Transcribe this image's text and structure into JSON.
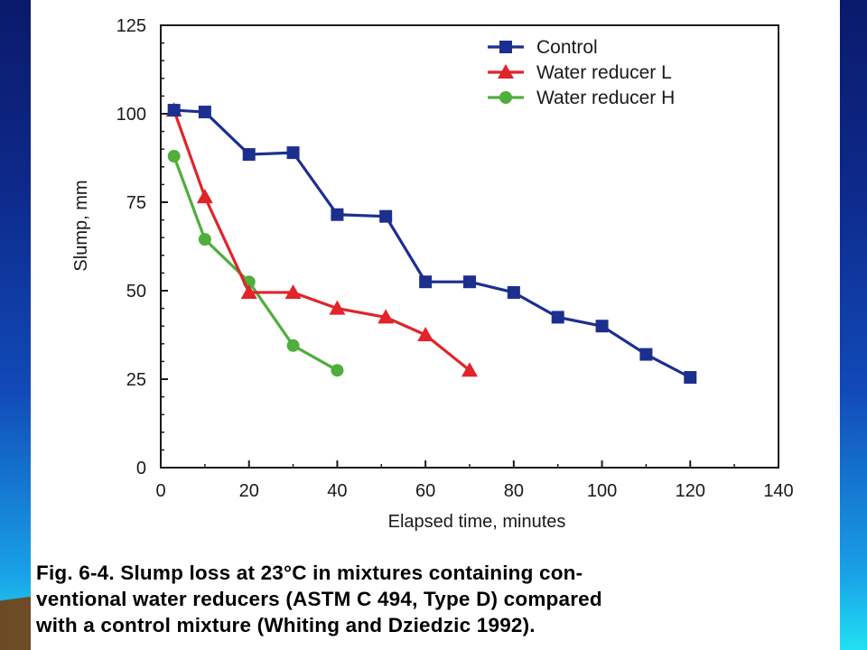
{
  "caption": {
    "lines": [
      "Fig. 6-4. Slump loss at 23°C in mixtures containing con-",
      "ventional water reducers (ASTM C 494, Type D) compared",
      "with a control mixture (Whiting and Dziedzic 1992)."
    ]
  },
  "chart_data": {
    "type": "line",
    "xlabel": "Elapsed time, minutes",
    "ylabel": "Slump, mm",
    "xlim": [
      0,
      140
    ],
    "ylim": [
      0,
      125
    ],
    "xticks": [
      0,
      20,
      40,
      60,
      80,
      100,
      120,
      140
    ],
    "yticks": [
      0,
      25,
      50,
      75,
      100,
      125
    ],
    "grid": false,
    "legend_position": "top-right",
    "series": [
      {
        "name": "Control",
        "color": "#1c2f8f",
        "marker": "square",
        "x": [
          3,
          10,
          20,
          30,
          40,
          51,
          60,
          70,
          80,
          90,
          100,
          110,
          120
        ],
        "y": [
          101,
          100.5,
          88.5,
          89,
          71.5,
          71,
          52.5,
          52.5,
          49.5,
          42.5,
          40,
          32,
          25.5
        ]
      },
      {
        "name": "Water reducer L",
        "color": "#e0242a",
        "marker": "triangle",
        "x": [
          3,
          10,
          20,
          30,
          40,
          51,
          60,
          70
        ],
        "y": [
          101,
          76.5,
          49.5,
          49.5,
          45,
          42.5,
          37.5,
          27.5
        ]
      },
      {
        "name": "Water reducer H",
        "color": "#4fae3c",
        "marker": "circle",
        "x": [
          3,
          10,
          20,
          30,
          40
        ],
        "y": [
          88,
          64.5,
          52.5,
          34.5,
          27.5
        ]
      }
    ]
  }
}
